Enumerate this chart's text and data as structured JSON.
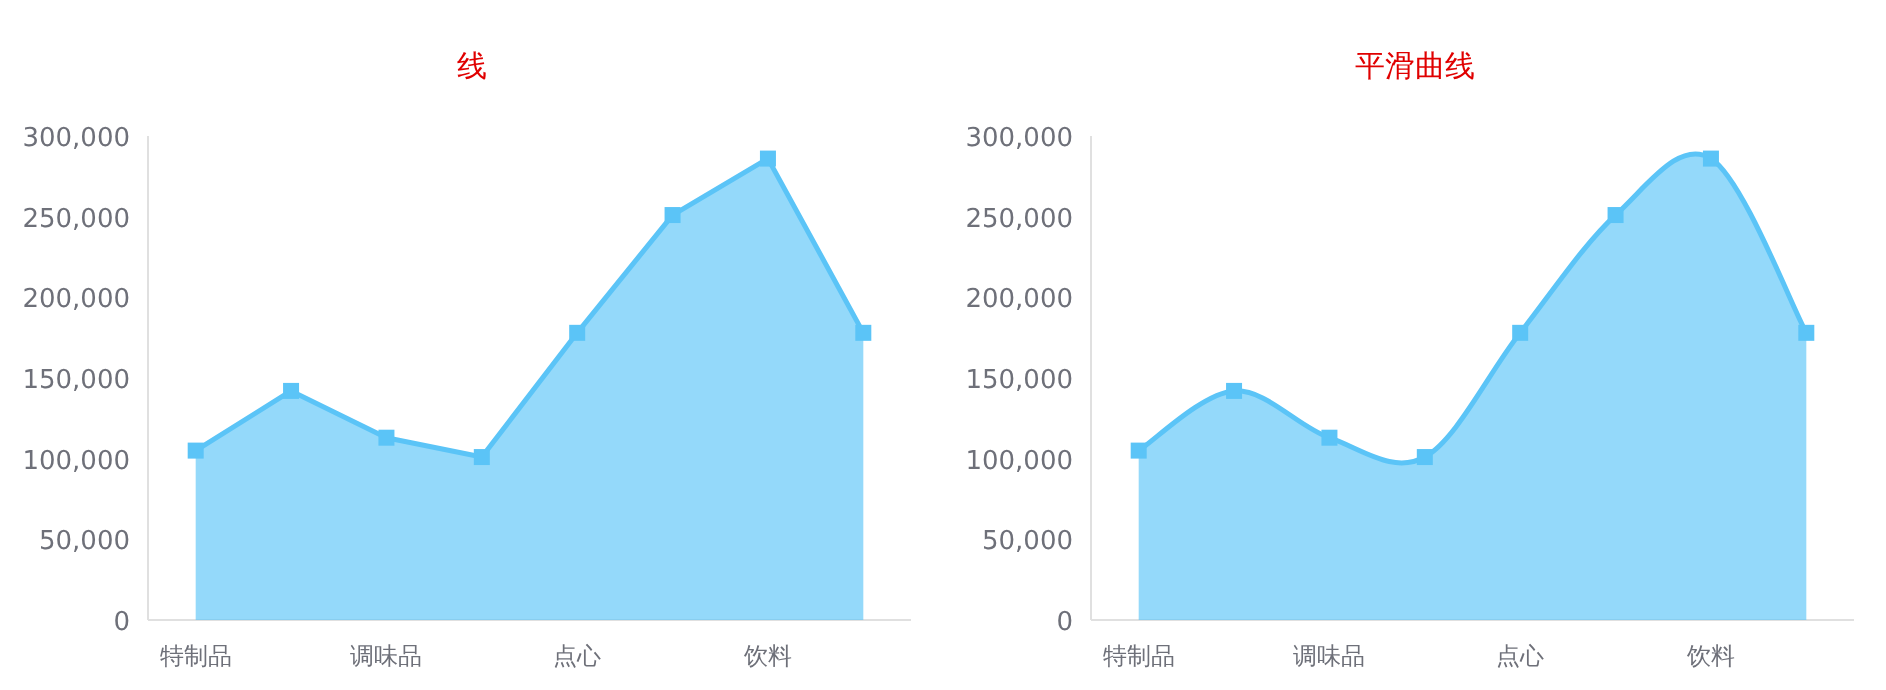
{
  "chart_data": [
    {
      "type": "area",
      "title": "线",
      "categories": [
        "特制品",
        null,
        "调味品",
        null,
        "点心",
        null,
        "饮料",
        null
      ],
      "series": [
        {
          "color": "#5bc4f7",
          "values": [
            105000,
            142000,
            113000,
            101000,
            178000,
            251000,
            286000,
            178000
          ]
        }
      ],
      "ylim": [
        0,
        300000
      ],
      "yticks": [
        {
          "value": 0,
          "label": "0"
        },
        {
          "value": 50000,
          "label": "50,000"
        },
        {
          "value": 100000,
          "label": "100,000"
        },
        {
          "value": 150000,
          "label": "150,000"
        },
        {
          "value": 200000,
          "label": "200,000"
        },
        {
          "value": 250000,
          "label": "250,000"
        },
        {
          "value": 300000,
          "label": "300,000"
        }
      ],
      "marker": "square",
      "line_style": "solid"
    },
    {
      "type": "area",
      "title": "平滑曲线",
      "categories": [
        "特制品",
        null,
        "调味品",
        null,
        "点心",
        null,
        "饮料",
        null
      ],
      "series": [
        {
          "color": "#5bc4f7",
          "values": [
            105000,
            142000,
            113000,
            101000,
            178000,
            251000,
            286000,
            178000
          ]
        }
      ],
      "ylim": [
        0,
        300000
      ],
      "yticks": [
        {
          "value": 0,
          "label": "0"
        },
        {
          "value": 50000,
          "label": "50,000"
        },
        {
          "value": 100000,
          "label": "100,000"
        },
        {
          "value": 150000,
          "label": "150,000"
        },
        {
          "value": 200000,
          "label": "200,000"
        },
        {
          "value": 250000,
          "label": "250,000"
        },
        {
          "value": 300000,
          "label": "300,000"
        }
      ],
      "marker": "square",
      "line_style": "solid"
    }
  ]
}
